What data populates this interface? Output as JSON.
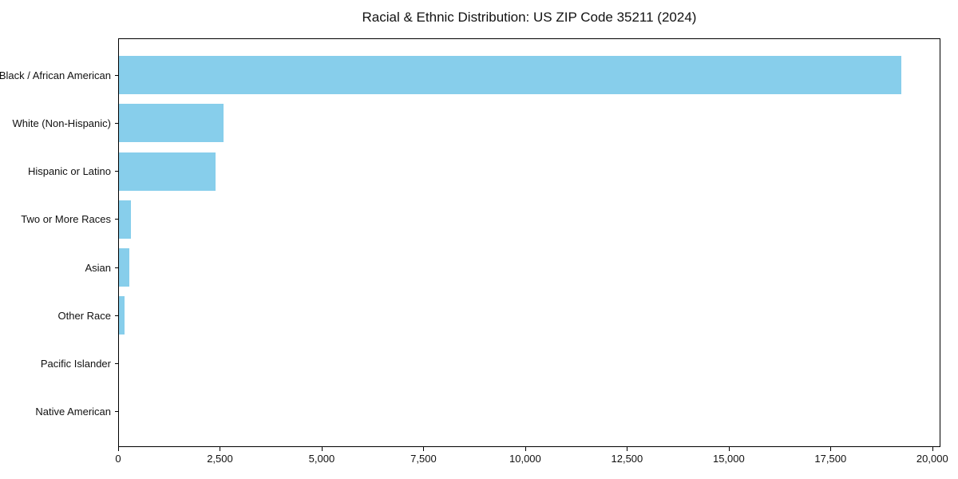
{
  "chart_data": {
    "type": "bar",
    "orientation": "horizontal",
    "title": "Racial & Ethnic Distribution: US ZIP Code 35211 (2024)",
    "xlabel": "",
    "ylabel": "",
    "categories": [
      "Black / African American",
      "White (Non-Hispanic)",
      "Hispanic or Latino",
      "Two or More Races",
      "Asian",
      "Other Race",
      "Pacific Islander",
      "Native American"
    ],
    "values": [
      19235,
      2590,
      2395,
      315,
      275,
      155,
      0,
      0
    ],
    "xlim": [
      0,
      20200
    ],
    "xticks": [
      0,
      2500,
      5000,
      7500,
      10000,
      12500,
      15000,
      17500,
      20000
    ],
    "xtick_labels": [
      "0",
      "2,500",
      "5,000",
      "7,500",
      "10,000",
      "12,500",
      "15,000",
      "17,500",
      "20,000"
    ],
    "bar_color": "#87CEEB",
    "axis_color": "#000000",
    "grid": false,
    "legend": null
  }
}
